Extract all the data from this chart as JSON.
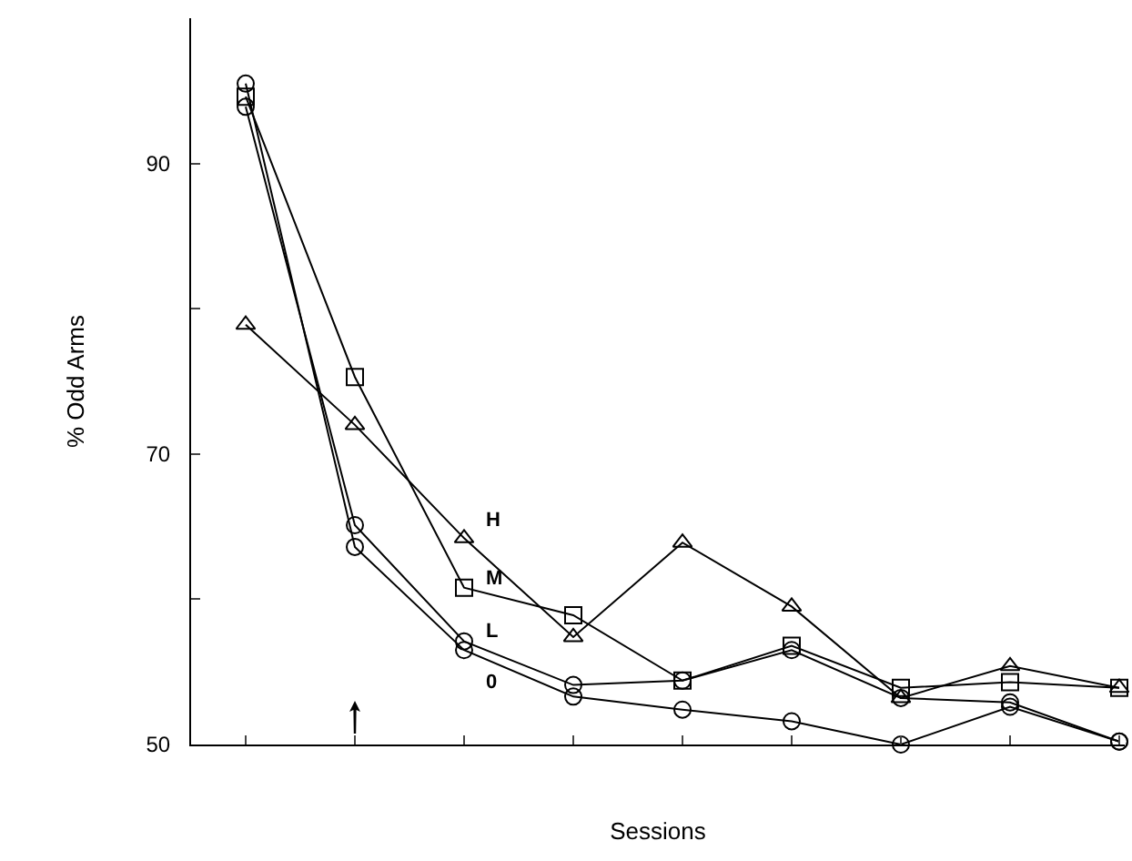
{
  "chart_data": {
    "type": "line",
    "xlabel": "Sessions",
    "ylabel": "% Odd Arms",
    "categories": [
      null,
      null,
      null,
      null,
      null,
      null,
      null,
      null,
      null
    ],
    "series": [
      {
        "name": "H",
        "color": "#000000",
        "marker": "triangle",
        "values": [
          78.9,
          72,
          64.2,
          57.4,
          63.9,
          59.5,
          53.2,
          55.4,
          53.9
        ]
      },
      {
        "name": "M",
        "color": "#000000",
        "marker": "square",
        "values": [
          94.6,
          75.3,
          60.8,
          58.9,
          54.4,
          56.8,
          53.9,
          54.3,
          53.9
        ]
      },
      {
        "name": "L",
        "color": "#000000",
        "marker": "circle",
        "values": [
          93.9,
          65.1,
          57.1,
          54.1,
          54.4,
          56.5,
          53.2,
          52.9,
          50.2
        ]
      },
      {
        "name": "0",
        "color": "#000000",
        "marker": "circle",
        "values": [
          95.5,
          63.6,
          56.5,
          53.3,
          52.4,
          51.6,
          50,
          52.6,
          50.2
        ]
      }
    ],
    "ylim": [
      50,
      100
    ],
    "yticks": [
      50,
      {
        "value": 60,
        "label": null
      },
      70,
      {
        "value": 80,
        "label": null
      },
      90
    ],
    "grid": false,
    "legend": false
  }
}
